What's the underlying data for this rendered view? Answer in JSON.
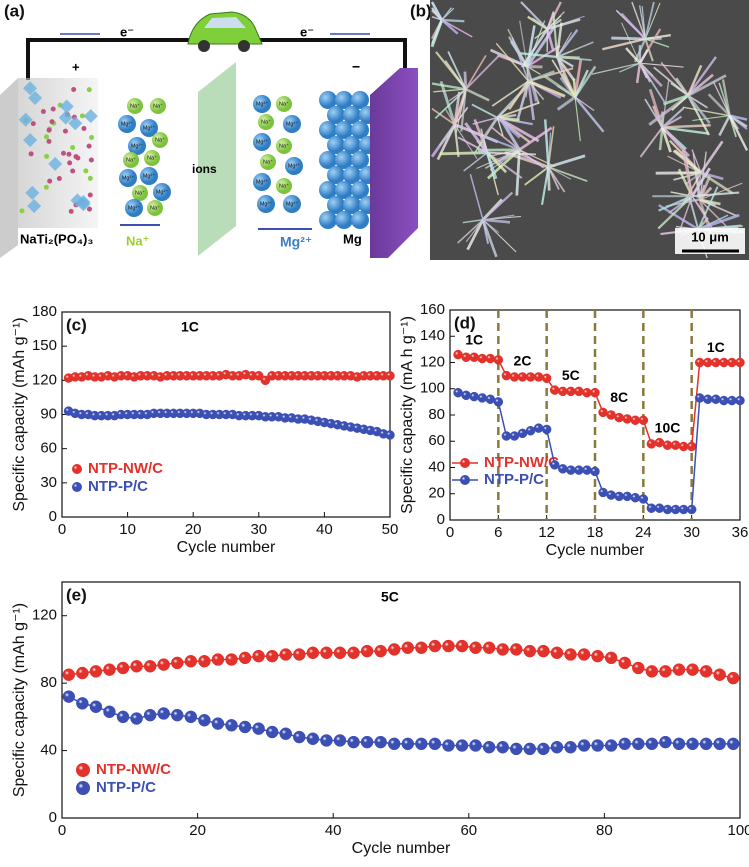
{
  "panel_a": {
    "label": "(a)",
    "electron": "e⁻",
    "plus": "+",
    "minus": "−",
    "ions": "ions",
    "cathode": "NaTi₂(PO₄)₃",
    "na_ion": "Na⁺",
    "mg_ion": "Mg²⁺",
    "anode": "Mg"
  },
  "panel_b": {
    "label": "(b)",
    "scale_bar": "10 μm"
  },
  "chart_data": [
    {
      "type": "line",
      "label": "(c)",
      "annotation": "1C",
      "x_label": "Cycle number",
      "y_label": "Specific capacity (mAh g⁻¹)",
      "xlim": [
        0,
        50
      ],
      "xticks": [
        0,
        10,
        20,
        30,
        40,
        50
      ],
      "ylim": [
        0,
        180
      ],
      "yticks": [
        0,
        30,
        60,
        90,
        120,
        150,
        180
      ],
      "legend": "lower left",
      "x": [
        1,
        2,
        3,
        4,
        5,
        6,
        7,
        8,
        9,
        10,
        11,
        12,
        13,
        14,
        15,
        16,
        17,
        18,
        19,
        20,
        21,
        22,
        23,
        24,
        25,
        26,
        27,
        28,
        29,
        30,
        31,
        32,
        33,
        34,
        35,
        36,
        37,
        38,
        39,
        40,
        41,
        42,
        43,
        44,
        45,
        46,
        47,
        48,
        49,
        50
      ],
      "series": [
        {
          "name": "NTP-NW/C",
          "color": "#e3312b",
          "values": [
            122,
            123,
            123,
            124,
            123,
            123,
            124,
            123,
            124,
            124,
            123,
            124,
            124,
            124,
            123,
            124,
            124,
            124,
            124,
            124,
            124,
            124,
            124,
            124,
            125,
            124,
            124,
            125,
            124,
            124,
            120,
            124,
            124,
            124,
            124,
            124,
            124,
            124,
            124,
            124,
            124,
            124,
            124,
            124,
            123,
            124,
            124,
            124,
            124,
            124
          ]
        },
        {
          "name": "NTP-P/C",
          "color": "#3b4fb4",
          "values": [
            93,
            91,
            90,
            90,
            89,
            89,
            89,
            89,
            90,
            90,
            90,
            90,
            90,
            91,
            91,
            91,
            91,
            91,
            91,
            91,
            91,
            90,
            90,
            90,
            90,
            90,
            89,
            89,
            89,
            89,
            88,
            88,
            88,
            87,
            87,
            86,
            86,
            85,
            84,
            83,
            82,
            81,
            80,
            79,
            78,
            77,
            76,
            75,
            73,
            72
          ]
        }
      ]
    },
    {
      "type": "line",
      "label": "(d)",
      "x_label": "Cycle number",
      "y_label": "Specific capacity (mA h g⁻¹)",
      "xlim": [
        0,
        36
      ],
      "xticks": [
        0,
        6,
        12,
        18,
        24,
        30,
        36
      ],
      "ylim": [
        0,
        160
      ],
      "yticks": [
        0,
        20,
        40,
        60,
        80,
        100,
        120,
        140,
        160
      ],
      "legend": "center left",
      "dividers": [
        6,
        12,
        18,
        24,
        30
      ],
      "phase_labels": [
        "1C",
        "2C",
        "5C",
        "8C",
        "10C",
        "1C"
      ],
      "x": [
        1,
        2,
        3,
        4,
        5,
        6,
        7,
        8,
        9,
        10,
        11,
        12,
        13,
        14,
        15,
        16,
        17,
        18,
        19,
        20,
        21,
        22,
        23,
        24,
        25,
        26,
        27,
        28,
        29,
        30,
        31,
        32,
        33,
        34,
        35,
        36
      ],
      "series": [
        {
          "name": "NTP-NW/C",
          "color": "#e3312b",
          "values": [
            126,
            124,
            124,
            123,
            123,
            122,
            110,
            109,
            109,
            109,
            109,
            108,
            99,
            98,
            98,
            98,
            97,
            97,
            82,
            80,
            78,
            77,
            76,
            76,
            58,
            59,
            57,
            57,
            56,
            56,
            120,
            120,
            120,
            120,
            120,
            120
          ]
        },
        {
          "name": "NTP-P/C",
          "color": "#3b4fb4",
          "values": [
            97,
            95,
            94,
            93,
            92,
            90,
            64,
            64,
            66,
            68,
            70,
            69,
            42,
            39,
            38,
            38,
            38,
            37,
            21,
            19,
            18,
            18,
            17,
            16,
            9,
            9,
            8,
            8,
            8,
            8,
            93,
            92,
            92,
            91,
            91,
            91
          ]
        }
      ]
    },
    {
      "type": "line",
      "label": "(e)",
      "annotation": "5C",
      "x_label": "Cycle number",
      "y_label": "Specific capacity (mAh g⁻¹)",
      "xlim": [
        0,
        100
      ],
      "xticks": [
        0,
        20,
        40,
        60,
        80,
        100
      ],
      "ylim": [
        0,
        140
      ],
      "yticks": [
        0,
        40,
        80,
        120
      ],
      "legend": "lower left",
      "x": [
        1,
        3,
        5,
        7,
        9,
        11,
        13,
        15,
        17,
        19,
        21,
        23,
        25,
        27,
        29,
        31,
        33,
        35,
        37,
        39,
        41,
        43,
        45,
        47,
        49,
        51,
        53,
        55,
        57,
        59,
        61,
        63,
        65,
        67,
        69,
        71,
        73,
        75,
        77,
        79,
        81,
        83,
        85,
        87,
        89,
        91,
        93,
        95,
        97,
        99
      ],
      "series": [
        {
          "name": "NTP-NW/C",
          "color": "#e3312b",
          "values": [
            85,
            86,
            87,
            88,
            89,
            90,
            90,
            91,
            92,
            93,
            93,
            94,
            94,
            95,
            96,
            96,
            97,
            97,
            98,
            98,
            98,
            98,
            99,
            99,
            100,
            101,
            101,
            102,
            102,
            102,
            101,
            101,
            100,
            100,
            99,
            99,
            98,
            97,
            97,
            96,
            95,
            92,
            89,
            87,
            87,
            88,
            88,
            87,
            85,
            83
          ]
        },
        {
          "name": "NTP-P/C",
          "color": "#3b4fb4",
          "values": [
            72,
            68,
            66,
            63,
            60,
            59,
            61,
            62,
            61,
            60,
            58,
            56,
            55,
            54,
            53,
            51,
            50,
            48,
            47,
            46,
            46,
            45,
            45,
            45,
            44,
            44,
            44,
            44,
            43,
            43,
            43,
            42,
            42,
            41,
            41,
            41,
            42,
            42,
            43,
            43,
            43,
            44,
            44,
            44,
            45,
            44,
            44,
            44,
            44,
            44
          ]
        }
      ]
    }
  ]
}
